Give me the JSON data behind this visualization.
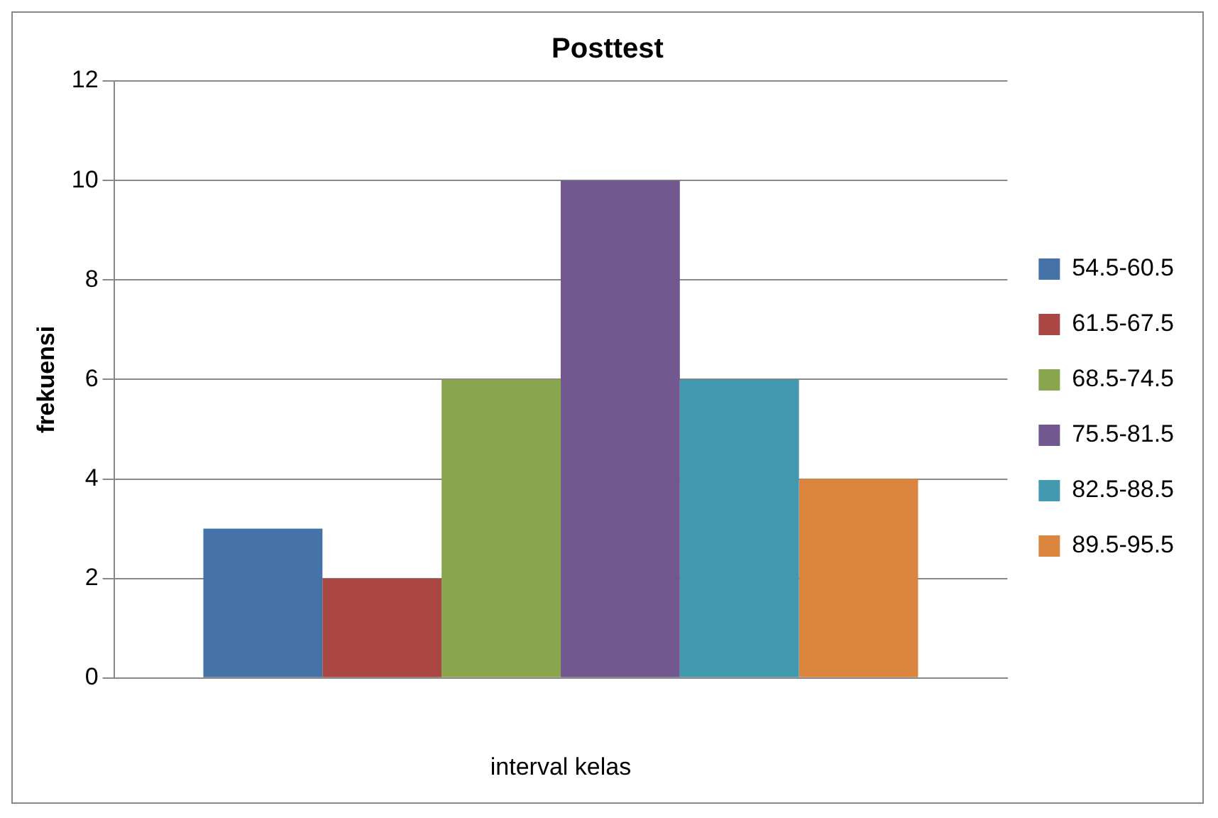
{
  "chart_data": {
    "type": "bar",
    "title": "Posttest",
    "xlabel": "interval kelas",
    "ylabel": "frekuensi",
    "categories": [
      null
    ],
    "series": [
      {
        "name": "54.5-60.5",
        "color": "#4572a7",
        "values": [
          3
        ]
      },
      {
        "name": "61.5-67.5",
        "color": "#aa4643",
        "values": [
          2
        ]
      },
      {
        "name": "68.5-74.5",
        "color": "#89a54e",
        "values": [
          6
        ]
      },
      {
        "name": "75.5-81.5",
        "color": "#71588f",
        "values": [
          10
        ]
      },
      {
        "name": "82.5-88.5",
        "color": "#4198af",
        "values": [
          6
        ]
      },
      {
        "name": "89.5-95.5",
        "color": "#db843d",
        "values": [
          4
        ]
      }
    ],
    "ylim": [
      0,
      12
    ],
    "yticks": [
      0,
      2,
      4,
      6,
      8,
      10,
      12
    ],
    "grid": "y",
    "legend": "right"
  }
}
